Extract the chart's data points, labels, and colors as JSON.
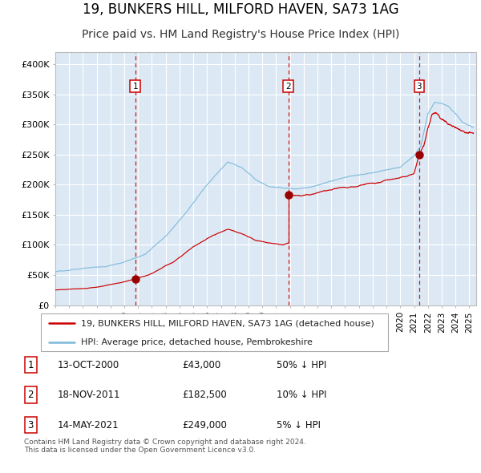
{
  "title": "19, BUNKERS HILL, MILFORD HAVEN, SA73 1AG",
  "subtitle": "Price paid vs. HM Land Registry's House Price Index (HPI)",
  "title_fontsize": 12,
  "subtitle_fontsize": 10,
  "ylim": [
    0,
    420000
  ],
  "yticks": [
    0,
    50000,
    100000,
    150000,
    200000,
    250000,
    300000,
    350000,
    400000
  ],
  "ytick_labels": [
    "£0",
    "£50K",
    "£100K",
    "£150K",
    "£200K",
    "£250K",
    "£300K",
    "£350K",
    "£400K"
  ],
  "xlim_start": 1995.0,
  "xlim_end": 2025.5,
  "background_color": "#ffffff",
  "plot_bg_color": "#dce9f5",
  "grid_color": "#ffffff",
  "hpi_color": "#7ab8d9",
  "price_color": "#cc0000",
  "sale_dot_color": "#990000",
  "vline_color": "#cc0000",
  "legend_label_price": "19, BUNKERS HILL, MILFORD HAVEN, SA73 1AG (detached house)",
  "legend_label_hpi": "HPI: Average price, detached house, Pembrokeshire",
  "sales": [
    {
      "num": 1,
      "date_x": 2000.79,
      "price": 43000,
      "label_date": "13-OCT-2000",
      "label_price": "£43,000",
      "label_pct": "50% ↓ HPI"
    },
    {
      "num": 2,
      "date_x": 2011.88,
      "price": 182500,
      "label_date": "18-NOV-2011",
      "label_price": "£182,500",
      "label_pct": "10% ↓ HPI"
    },
    {
      "num": 3,
      "date_x": 2021.37,
      "price": 249000,
      "label_date": "14-MAY-2021",
      "label_price": "£249,000",
      "label_pct": "5% ↓ HPI"
    }
  ],
  "footer_line1": "Contains HM Land Registry data © Crown copyright and database right 2024.",
  "footer_line2": "This data is licensed under the Open Government Licence v3.0."
}
